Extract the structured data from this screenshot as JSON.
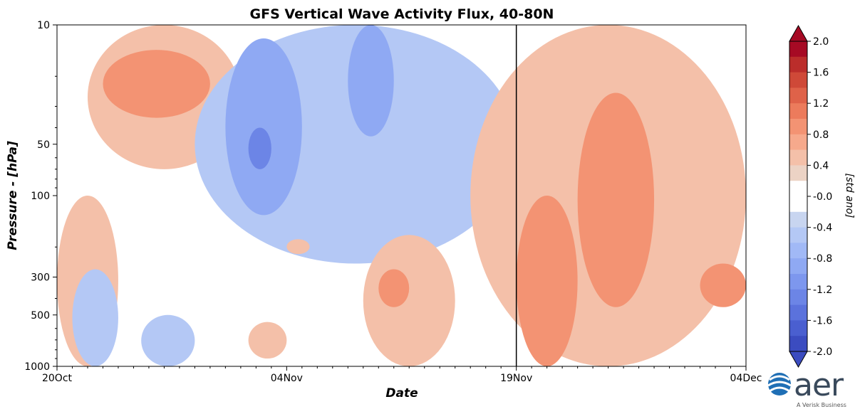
{
  "chart_data": {
    "type": "heatmap",
    "title": "GFS Vertical Wave Activity Flux, 40-80N",
    "xlabel": "Date",
    "ylabel": "Pressure - [hPa]",
    "x_ticks": [
      "20Oct",
      "04Nov",
      "19Nov",
      "04Dec"
    ],
    "x_tick_days": [
      0,
      15,
      30,
      45
    ],
    "xlim_days": [
      0,
      45
    ],
    "y_scale": "log",
    "y_inverted": true,
    "y_ticks": [
      10,
      50,
      100,
      300,
      500,
      1000
    ],
    "ylim": [
      1000,
      10
    ],
    "vertical_marker_date": "19Nov",
    "colorbar": {
      "label": "[std ano]",
      "ticks": [
        "2.0",
        "1.6",
        "1.2",
        "0.8",
        "0.4",
        "-0.0",
        "-0.4",
        "-0.8",
        "-1.2",
        "-1.6",
        "-2.0"
      ],
      "levels": [
        -2.0,
        -1.8,
        -1.6,
        -1.4,
        -1.2,
        -1.0,
        -0.8,
        -0.6,
        -0.4,
        -0.2,
        0.2,
        0.4,
        0.6,
        0.8,
        1.0,
        1.2,
        1.4,
        1.6,
        1.8,
        2.0
      ],
      "colors_neg": [
        "#3b4cc0",
        "#4a5fd0",
        "#5b72dc",
        "#6c85e6",
        "#7d97ee",
        "#8fa9f3",
        "#a1b9f6",
        "#b4c8f5",
        "#c8d5f0",
        "#ffffff"
      ],
      "colors_pos": [
        "#ffffff",
        "#ecd3c5",
        "#f4c0a9",
        "#f6a98c",
        "#f39373",
        "#ec7b5c",
        "#df6249",
        "#cf4938",
        "#bb2d2b",
        "#a60a24"
      ]
    },
    "regions": [
      {
        "sign": "positive",
        "level": 0.4,
        "days": [
          0,
          4
        ],
        "pressure_hPa": [
          100,
          1000
        ]
      },
      {
        "sign": "positive",
        "level": 0.4,
        "days": [
          2,
          12
        ],
        "pressure_hPa": [
          10,
          70
        ]
      },
      {
        "sign": "positive",
        "level": 0.8,
        "days": [
          3,
          10
        ],
        "pressure_hPa": [
          14,
          35
        ]
      },
      {
        "sign": "negative",
        "level": -0.4,
        "days": [
          9,
          30
        ],
        "pressure_hPa": [
          10,
          250
        ]
      },
      {
        "sign": "negative",
        "level": -0.8,
        "days": [
          11,
          16
        ],
        "pressure_hPa": [
          12,
          130
        ]
      },
      {
        "sign": "negative",
        "level": -0.8,
        "days": [
          19,
          22
        ],
        "pressure_hPa": [
          10,
          45
        ]
      },
      {
        "sign": "negative",
        "level": -1.2,
        "days": [
          12.5,
          14
        ],
        "pressure_hPa": [
          40,
          70
        ]
      },
      {
        "sign": "negative",
        "level": -0.4,
        "days": [
          1,
          4
        ],
        "pressure_hPa": [
          270,
          1000
        ]
      },
      {
        "sign": "negative",
        "level": -0.4,
        "days": [
          5.5,
          9
        ],
        "pressure_hPa": [
          500,
          1000
        ]
      },
      {
        "sign": "positive",
        "level": 0.4,
        "days": [
          20,
          26
        ],
        "pressure_hPa": [
          170,
          1000
        ]
      },
      {
        "sign": "positive",
        "level": 0.8,
        "days": [
          21,
          23
        ],
        "pressure_hPa": [
          270,
          450
        ]
      },
      {
        "sign": "positive",
        "level": 0.4,
        "days": [
          12.5,
          15
        ],
        "pressure_hPa": [
          550,
          900
        ]
      },
      {
        "sign": "positive",
        "level": 0.4,
        "days": [
          15,
          16.5
        ],
        "pressure_hPa": [
          180,
          220
        ]
      },
      {
        "sign": "positive",
        "level": 0.4,
        "days": [
          27,
          45
        ],
        "pressure_hPa": [
          10,
          1000
        ]
      },
      {
        "sign": "positive",
        "level": 0.8,
        "days": [
          30,
          34
        ],
        "pressure_hPa": [
          100,
          1000
        ]
      },
      {
        "sign": "positive",
        "level": 0.8,
        "days": [
          34,
          39
        ],
        "pressure_hPa": [
          25,
          450
        ]
      },
      {
        "sign": "positive",
        "level": 0.8,
        "days": [
          42,
          45
        ],
        "pressure_hPa": [
          250,
          450
        ]
      }
    ]
  }
}
